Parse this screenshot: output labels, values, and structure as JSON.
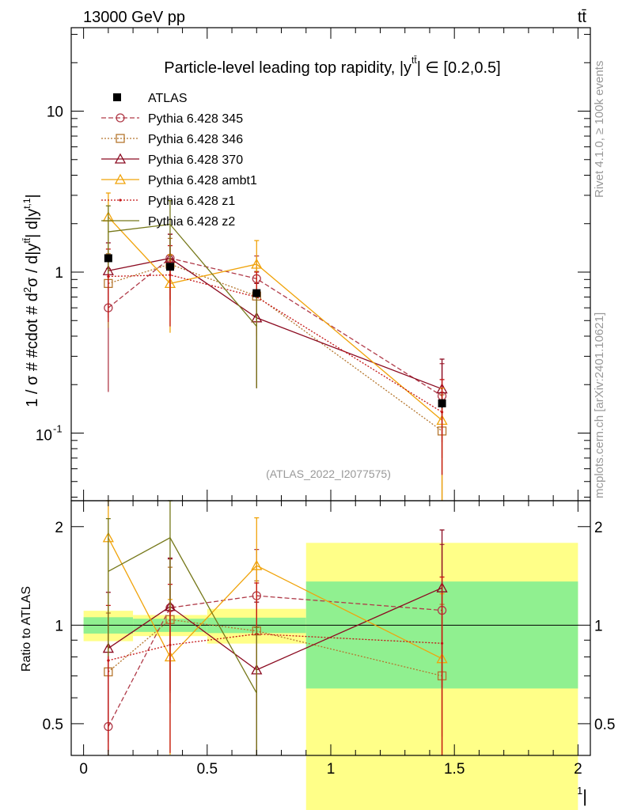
{
  "header": {
    "left": "13000 GeV pp",
    "right": "tt̄"
  },
  "side_labels": {
    "rivet": "Rivet 4.1.0, ≥ 100k events",
    "mcplots": "mcplots.cern.ch [arXiv:2401.10621]"
  },
  "chart_data": {
    "type": "scatter",
    "title": "Particle-level leading top rapidity, |y^{tt̄}| ∈ [0.2,0.5]",
    "title_text": "Particle-level leading top rapidity, |y",
    "title_sup": "tt̄",
    "title_tail": "| ∈ [0.2,0.5]",
    "watermark": "(ATLAS_2022_I2077575)",
    "xlabel": "|y^{t,1}|",
    "xlabel_text": "|y",
    "xlabel_sup": "t,1",
    "xlabel_tail": "|",
    "ylabel": "1 / σ # #cdot # d²σ / d|y^{tt̄}| d|y^{t,1}|",
    "ylabel_text": "1 / σ # #cdot # d",
    "ylabel_mid": "σ / d|y",
    "ylabel_sup": "tt̄",
    "ylabel_mid2": "| d|y",
    "ylabel_sup2": "t,1",
    "ylabel_tail": "|",
    "ratio_ylabel": "Ratio to ATLAS",
    "x_ticks": [
      0,
      0.5,
      1,
      1.5,
      2
    ],
    "x_tick_labels": [
      "0",
      "0.5",
      "1",
      "1.5",
      "2"
    ],
    "xlim": [
      -0.05,
      2.05
    ],
    "main_ylim": [
      0.038,
      33
    ],
    "main_y_tick_labels": [
      "10",
      "1",
      "10",
      "-1"
    ],
    "ratio_ylim": [
      0.4,
      2.4
    ],
    "ratio_y_ticks": [
      0.5,
      1,
      2
    ],
    "ratio_y_tick_labels": [
      "0.5",
      "1",
      "2"
    ],
    "bins": [
      [
        0,
        0.2
      ],
      [
        0.2,
        0.5
      ],
      [
        0.5,
        0.9
      ],
      [
        0.9,
        2.0
      ]
    ],
    "x": [
      0.1,
      0.35,
      0.7,
      1.45
    ],
    "atlas": {
      "name": "ATLAS",
      "values": [
        1.22,
        1.08,
        0.74,
        0.153
      ],
      "stat_err": [
        0.07,
        0.05,
        0.035,
        0.01
      ],
      "band_inner": [
        0.07,
        0.05,
        0.04,
        0.055
      ],
      "band_outer": [
        0.13,
        0.08,
        0.09,
        0.12
      ]
    },
    "series": [
      {
        "name": "Pythia 6.428 345",
        "color": "#b03a48",
        "marker": "circle",
        "dash": "6,3",
        "values": [
          0.6,
          1.22,
          0.91,
          0.17
        ],
        "err_lo": [
          0.42,
          0.55,
          0.35,
          0.1
        ],
        "err_hi": [
          0.45,
          0.5,
          0.35,
          0.1
        ],
        "ratio": [
          0.49,
          1.13,
          1.23,
          1.11
        ]
      },
      {
        "name": "Pythia 6.428 346",
        "color": "#b5762e",
        "marker": "square",
        "dash": "2,2",
        "values": [
          0.85,
          1.12,
          0.71,
          0.103
        ],
        "err_lo": [
          0.4,
          0.5,
          0.3,
          0.07
        ],
        "err_hi": [
          0.45,
          0.5,
          0.3,
          0.07
        ],
        "ratio": [
          0.72,
          1.04,
          0.96,
          0.7
        ]
      },
      {
        "name": "Pythia 6.428 370",
        "color": "#8b0a20",
        "marker": "triangle",
        "dash": "",
        "values": [
          1.02,
          1.22,
          0.52,
          0.188
        ],
        "err_lo": [
          0.5,
          0.55,
          0.33,
          0.1
        ],
        "err_hi": [
          0.5,
          0.5,
          0.33,
          0.1
        ],
        "ratio": [
          0.85,
          1.14,
          0.73,
          1.3
        ]
      },
      {
        "name": "Pythia 6.428 ambt1",
        "color": "#f0a30a",
        "marker": "triangle",
        "dash": "",
        "values": [
          2.2,
          0.85,
          1.12,
          0.12
        ],
        "err_lo": [
          0.9,
          0.43,
          0.45,
          0.09
        ],
        "err_hi": [
          0.9,
          0.43,
          0.45,
          0.07
        ],
        "ratio": [
          1.85,
          0.8,
          1.52,
          0.79
        ]
      },
      {
        "name": "Pythia 6.428 z1",
        "color": "#c41414",
        "marker": "dot",
        "dash": "2,2",
        "values": [
          0.94,
          0.96,
          0.7,
          0.135
        ],
        "err_lo": [
          0.45,
          0.5,
          0.3,
          0.08
        ],
        "err_hi": [
          0.45,
          0.5,
          0.3,
          0.08
        ],
        "ratio": [
          0.78,
          0.87,
          0.94,
          0.88
        ]
      },
      {
        "name": "Pythia 6.428 z2",
        "color": "#76781a",
        "marker": "none",
        "dash": "",
        "values": [
          1.78,
          1.98,
          0.46,
          null
        ],
        "err_lo": [
          0.8,
          0.8,
          0.27,
          null
        ],
        "err_hi": [
          0.8,
          0.8,
          0.27,
          null
        ],
        "ratio": [
          1.46,
          1.85,
          0.62,
          null
        ]
      }
    ]
  }
}
